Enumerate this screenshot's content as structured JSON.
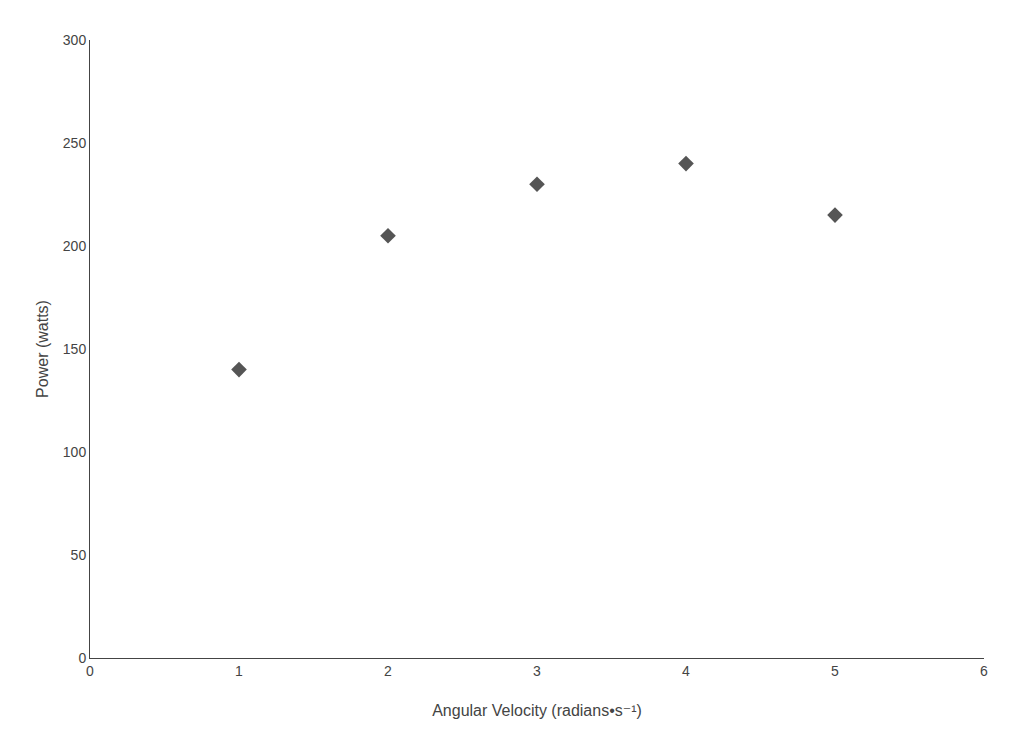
{
  "chart_data": {
    "type": "scatter",
    "x": [
      1,
      2,
      3,
      4,
      5
    ],
    "values": [
      140,
      205,
      230,
      240,
      215
    ],
    "color": "#555555",
    "marker": "diamond",
    "xlabel": "Angular Velocity (radians•s⁻¹)",
    "ylabel": "Power (watts)",
    "xlim": [
      0,
      6
    ],
    "ylim": [
      0,
      300
    ],
    "xticks": [
      0,
      1,
      2,
      3,
      4,
      5,
      6
    ],
    "yticks": [
      0,
      50,
      100,
      150,
      200,
      250,
      300
    ],
    "grid": false
  }
}
